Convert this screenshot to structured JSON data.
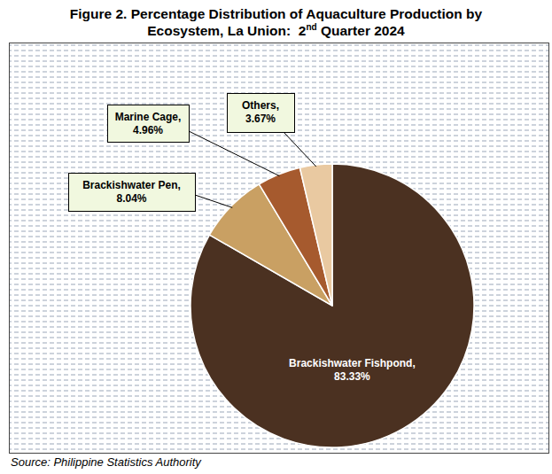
{
  "chart_data": {
    "type": "pie",
    "title": "Figure 2. Percentage Distribution of Aquaculture Production by Ecosystem, La Union:  2nd Quarter 2024",
    "source": "Source: Philippine Statistics Authority",
    "categories": [
      "Brackishwater Fishpond,",
      "Brackishwater Pen,",
      "Marine Cage,",
      "Others,"
    ],
    "values": [
      83.33,
      8.04,
      4.96,
      3.67
    ],
    "value_labels": [
      "83.33%",
      "8.04%",
      "4.96%",
      "3.67%"
    ],
    "colors": [
      "#4b3121",
      "#c9a063",
      "#a65a2e",
      "#e9c9a1"
    ],
    "data_labels": true
  }
}
